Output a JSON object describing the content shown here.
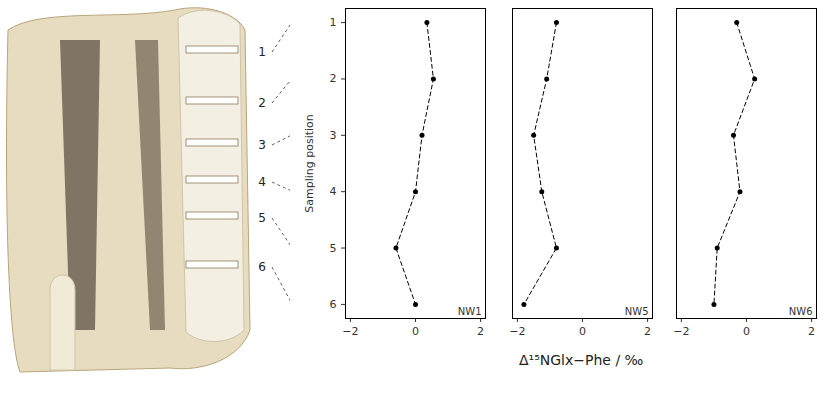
{
  "chart_data": [
    {
      "type": "line",
      "title": "NW1",
      "y_label": "Sampling position",
      "sample_labels": [
        1,
        2,
        3,
        4,
        5,
        6
      ],
      "x": [
        0.35,
        0.55,
        0.2,
        0.0,
        -0.6,
        0.0
      ],
      "y": [
        1,
        2,
        3,
        4,
        5,
        6
      ],
      "xlim": [
        -2.15,
        2.15
      ],
      "xticks": [
        -2,
        0,
        2
      ],
      "ylim": [
        0.75,
        6.25
      ],
      "yticks": [
        1,
        2,
        3,
        4,
        5,
        6
      ],
      "color": "#000000",
      "marker": "circle",
      "line_style": "dashed",
      "tick_labels": true
    },
    {
      "type": "line",
      "title": "NW5",
      "x_label": "Δ¹⁵NGlx−Phe / ‰",
      "x": [
        -0.8,
        -1.1,
        -1.5,
        -1.25,
        -0.8,
        -1.8
      ],
      "y": [
        1,
        2,
        3,
        4,
        5,
        6
      ],
      "xlim": [
        -2.15,
        2.15
      ],
      "xticks": [
        -2,
        0,
        2
      ],
      "ylim": [
        0.75,
        6.25
      ],
      "yticks": [
        1,
        2,
        3,
        4,
        5,
        6
      ],
      "color": "#000000",
      "marker": "circle",
      "line_style": "dashed",
      "tick_labels": "x"
    },
    {
      "type": "line",
      "title": "NW6",
      "x": [
        -0.3,
        0.25,
        -0.4,
        -0.2,
        -0.9,
        -1.0
      ],
      "y": [
        1,
        2,
        3,
        4,
        5,
        6
      ],
      "xlim": [
        -2.15,
        2.15
      ],
      "xticks": [
        -2,
        0,
        2
      ],
      "ylim": [
        0.75,
        6.25
      ],
      "yticks": [
        1,
        2,
        3,
        4,
        5,
        6
      ],
      "color": "#000000",
      "marker": "circle",
      "line_style": "dashed",
      "tick_labels": "x"
    }
  ]
}
